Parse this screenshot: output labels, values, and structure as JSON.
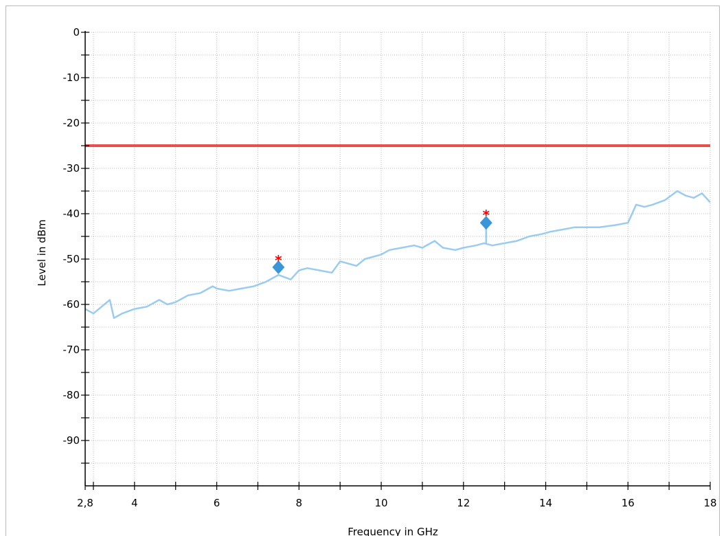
{
  "chart_data": {
    "type": "line",
    "title": "",
    "xlabel": "Frequency in GHz",
    "ylabel": "Level in dBm",
    "xlim": [
      2.8,
      18
    ],
    "ylim": [
      -100,
      0
    ],
    "x_ticks": [
      {
        "value": 2.8,
        "label": "2,8"
      },
      {
        "value": 4,
        "label": "4"
      },
      {
        "value": 6,
        "label": "6"
      },
      {
        "value": 8,
        "label": "8"
      },
      {
        "value": 10,
        "label": "10"
      },
      {
        "value": 12,
        "label": "12"
      },
      {
        "value": 14,
        "label": "14"
      },
      {
        "value": 16,
        "label": "16"
      },
      {
        "value": 18,
        "label": "18"
      }
    ],
    "y_ticks": [
      {
        "value": 0,
        "label": "0"
      },
      {
        "value": -10,
        "label": "-10"
      },
      {
        "value": -20,
        "label": "-20"
      },
      {
        "value": -30,
        "label": "-30"
      },
      {
        "value": -40,
        "label": "-40"
      },
      {
        "value": -50,
        "label": "-50"
      },
      {
        "value": -60,
        "label": "-60"
      },
      {
        "value": -70,
        "label": "-70"
      },
      {
        "value": -80,
        "label": "-80"
      },
      {
        "value": -90,
        "label": "-90"
      }
    ],
    "grid": true,
    "colors": {
      "trace": "#99ccf0",
      "limit": "#e8504c",
      "marker": "#3a96d8",
      "peak": "#ff0000"
    },
    "limit_line": {
      "y": -25
    },
    "series": [
      {
        "x": [
          2.8,
          3.0,
          3.2,
          3.4,
          3.5,
          3.6,
          3.7,
          4.0,
          4.3,
          4.6,
          4.8,
          5.0,
          5.3,
          5.6,
          5.9,
          6.0,
          6.3,
          6.6,
          6.9,
          7.2,
          7.5,
          7.8,
          8.0,
          8.2,
          8.5,
          8.8,
          9.0,
          9.2,
          9.4,
          9.6,
          9.8,
          10.0,
          10.2,
          10.5,
          10.8,
          11.0,
          11.3,
          11.5,
          11.8,
          12.0,
          12.3,
          12.5,
          12.7,
          13.0,
          13.3,
          13.6,
          13.9,
          14.1,
          14.4,
          14.7,
          15.0,
          15.3,
          15.7,
          16.0,
          16.2,
          16.4,
          16.6,
          16.9,
          17.2,
          17.4,
          17.6,
          17.8,
          18.0
        ],
        "y": [
          -61,
          -62,
          -60.5,
          -59,
          -63,
          -62.5,
          -62,
          -61,
          -60.5,
          -59,
          -60,
          -59.5,
          -58,
          -57.5,
          -56,
          -56.5,
          -57,
          -56.5,
          -56,
          -55,
          -53.5,
          -54.5,
          -52.5,
          -52,
          -52.5,
          -53,
          -50.5,
          -51,
          -51.5,
          -50,
          -49.5,
          -49,
          -48,
          -47.5,
          -47,
          -47.5,
          -46,
          -47.5,
          -48,
          -47.5,
          -47,
          -46.5,
          -47,
          -46.5,
          -46,
          -45,
          -44.5,
          -44,
          -43.5,
          -43,
          -43,
          -43,
          -42.5,
          -42,
          -38,
          -38.5,
          -38,
          -37,
          -35,
          -36,
          -36.5,
          -35.5,
          -37.5
        ]
      }
    ],
    "markers": [
      {
        "x": 7.5,
        "y": -51.8
      },
      {
        "x": 12.55,
        "y": -42
      }
    ],
    "peaks": [
      {
        "x": 7.5,
        "y": -50
      },
      {
        "x": 12.55,
        "y": -40
      }
    ]
  }
}
